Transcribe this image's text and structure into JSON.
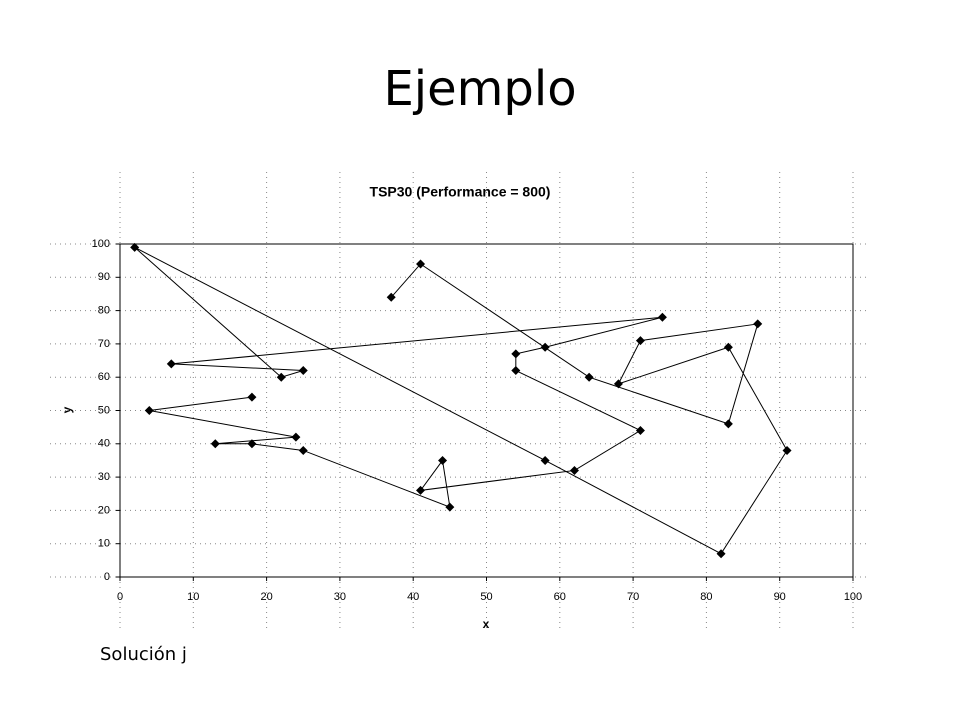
{
  "slide_title": "Ejemplo",
  "caption": "Solución j",
  "chart_data": {
    "type": "line",
    "title": "TSP30 (Performance = 800)",
    "x_label": "x",
    "y_label": "y",
    "x": [
      37,
      41,
      64,
      83,
      87,
      71,
      68,
      83,
      91,
      82,
      58,
      2,
      22,
      25,
      7,
      74,
      58,
      54,
      54,
      71,
      62,
      41,
      44,
      45,
      25,
      18,
      13,
      24,
      4,
      18
    ],
    "values": [
      84,
      94,
      60,
      46,
      76,
      71,
      58,
      69,
      38,
      7,
      35,
      99,
      60,
      62,
      64,
      78,
      69,
      67,
      62,
      44,
      32,
      26,
      35,
      21,
      38,
      40,
      40,
      42,
      50,
      54
    ],
    "color": "#000000",
    "marker": "diamond",
    "xlim": [
      0,
      100
    ],
    "ylim": [
      0,
      100
    ],
    "xticks": [
      0,
      10,
      20,
      30,
      40,
      50,
      60,
      70,
      80,
      90,
      100
    ],
    "yticks": [
      0,
      10,
      20,
      30,
      40,
      50,
      60,
      70,
      80,
      90,
      100
    ],
    "grid": true
  }
}
